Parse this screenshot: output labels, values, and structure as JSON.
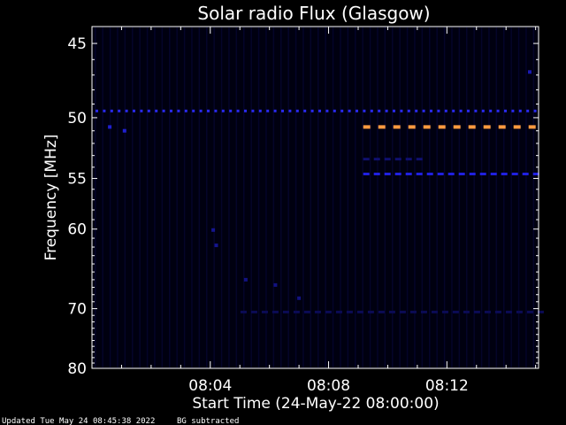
{
  "chart_data": {
    "type": "heatmap",
    "title": "Solar radio Flux (Glasgow)",
    "xlabel": "Start Time (24-May-22 08:00:00)",
    "ylabel": "Frequency [MHz]",
    "x_ticks": [
      {
        "label": "08:04",
        "minutes": 4
      },
      {
        "label": "08:08",
        "minutes": 8
      },
      {
        "label": "08:12",
        "minutes": 12
      }
    ],
    "y_ticks": [
      {
        "label": "45",
        "mhz": 45
      },
      {
        "label": "50",
        "mhz": 50
      },
      {
        "label": "55",
        "mhz": 55
      },
      {
        "label": "60",
        "mhz": 60
      },
      {
        "label": "70",
        "mhz": 70
      },
      {
        "label": "80",
        "mhz": 80
      }
    ],
    "ylim_mhz": [
      44,
      80
    ],
    "xlim_minutes": [
      0,
      15.1
    ],
    "reciprocal_y_axis": true,
    "colors": {
      "background": "#000000",
      "plot_background": "#000010",
      "axes": "#ffffff",
      "interference_blue": "#1c1cf0",
      "faint_blue": "#0a0a5a",
      "strong_orange": "#ff9a40"
    },
    "bands": [
      {
        "name": "blue-dashed-band",
        "mhz": 49.5,
        "start_min": 0,
        "end_min": 15.1,
        "color": "#2a2af0"
      },
      {
        "name": "orange-dashed-band",
        "mhz": 50.7,
        "start_min": 9.05,
        "end_min": 15.1,
        "color": "#ff9a40"
      },
      {
        "name": "blue-dashed-band-lower",
        "mhz": 54.6,
        "start_min": 9.05,
        "end_min": 15.1,
        "color": "#2020e0"
      },
      {
        "name": "faint-band-52",
        "mhz": 53.3,
        "start_min": 9.05,
        "end_min": 11.3,
        "color": "#101070"
      },
      {
        "name": "faint-band-70",
        "mhz": 70.5,
        "start_min": 4.9,
        "end_min": 15.1,
        "color": "#0b0b55"
      }
    ],
    "spots": [
      {
        "minutes": 0.6,
        "mhz": 50.7,
        "color": "#2020d0"
      },
      {
        "minutes": 1.1,
        "mhz": 51.0,
        "color": "#2020d0"
      },
      {
        "minutes": 4.1,
        "mhz": 60.1,
        "color": "#151590"
      },
      {
        "minutes": 4.2,
        "mhz": 61.8,
        "color": "#151590"
      },
      {
        "minutes": 5.2,
        "mhz": 66.0,
        "color": "#121280"
      },
      {
        "minutes": 6.2,
        "mhz": 66.7,
        "color": "#121280"
      },
      {
        "minutes": 7.0,
        "mhz": 68.5,
        "color": "#121280"
      },
      {
        "minutes": 14.8,
        "mhz": 46.8,
        "color": "#1a1ab0"
      }
    ],
    "footer": {
      "updated": "Updated Tue May 24 08:45:38 2022",
      "note": "BG subtracted"
    }
  }
}
